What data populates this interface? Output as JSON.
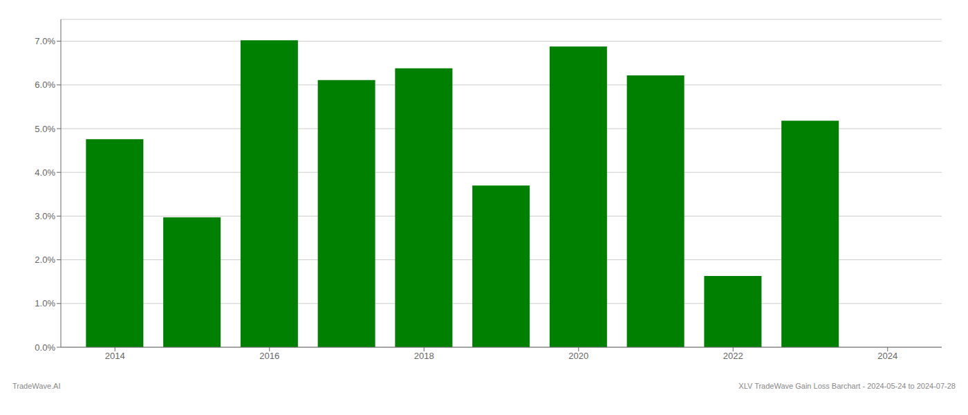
{
  "chart_data": {
    "type": "bar",
    "x": [
      2014,
      2015,
      2016,
      2017,
      2018,
      2019,
      2020,
      2021,
      2022,
      2023
    ],
    "values": [
      0.0476,
      0.0297,
      0.0702,
      0.0611,
      0.0638,
      0.037,
      0.0688,
      0.0622,
      0.0163,
      0.0518
    ],
    "color": "#008000",
    "xlim": [
      2013.3,
      2024.7
    ],
    "xticks": [
      2014,
      2016,
      2018,
      2020,
      2022,
      2024
    ],
    "ylim": [
      0,
      0.075
    ],
    "yticks": [
      {
        "value": 0.0,
        "label": "0.0%"
      },
      {
        "value": 0.01,
        "label": "1.0%"
      },
      {
        "value": 0.02,
        "label": "2.0%"
      },
      {
        "value": 0.03,
        "label": "3.0%"
      },
      {
        "value": 0.04,
        "label": "4.0%"
      },
      {
        "value": 0.05,
        "label": "5.0%"
      },
      {
        "value": 0.06,
        "label": "6.0%"
      },
      {
        "value": 0.07,
        "label": "7.0%"
      }
    ],
    "grid": true,
    "annotations": [
      "TradeWave.AI",
      "XLV TradeWave Gain Loss Barchart - 2024-05-24 to 2024-07-28"
    ]
  }
}
